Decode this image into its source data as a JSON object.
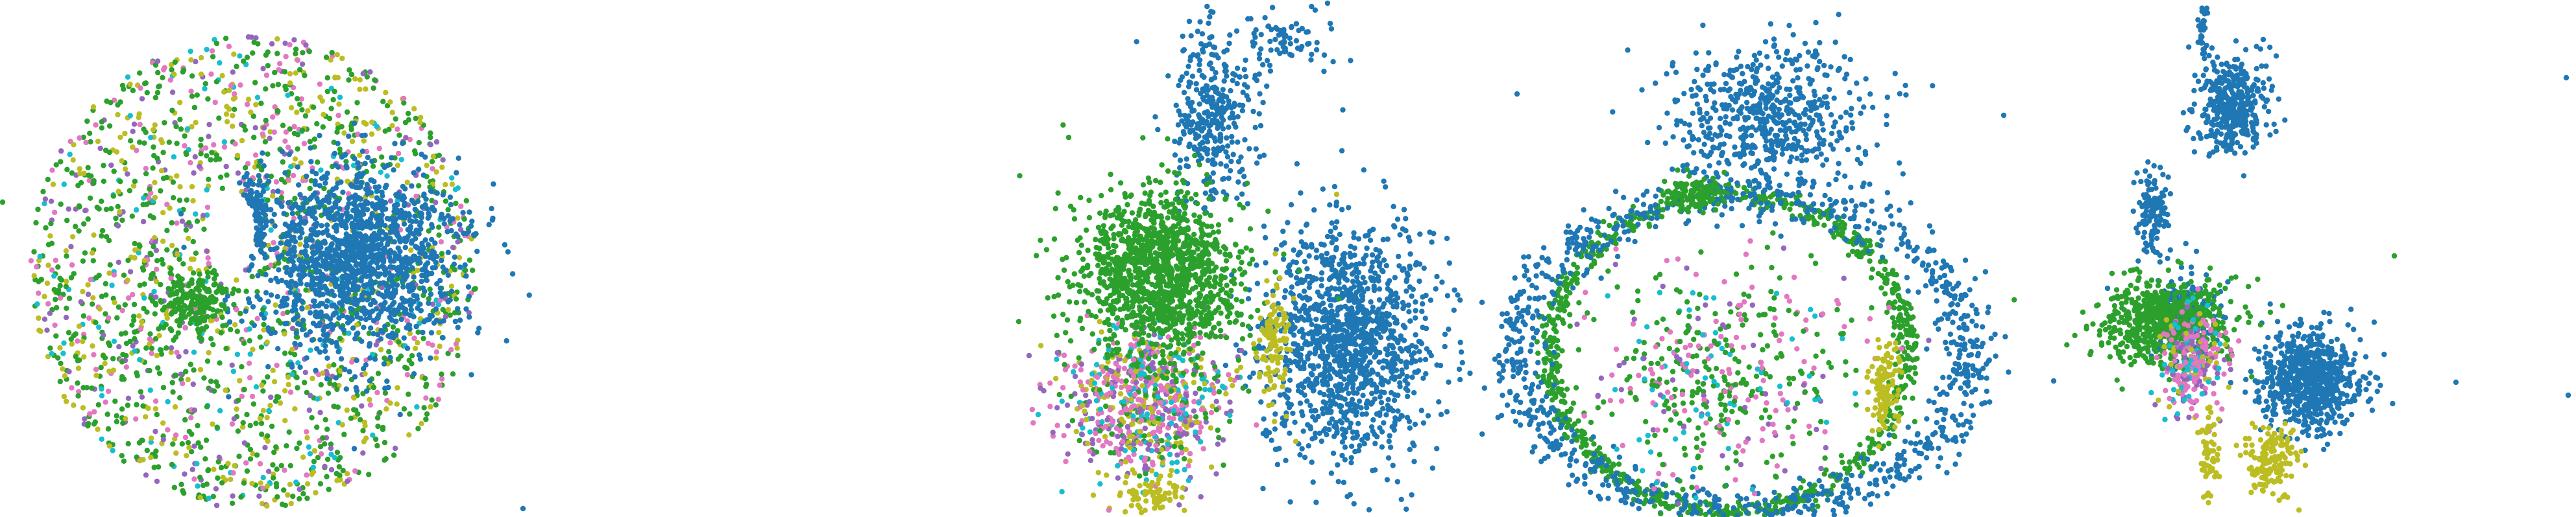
{
  "figure": {
    "background": "#ffffff",
    "point_colors": {
      "blue": "#1f77b4",
      "green": "#2ca02c",
      "olive": "#bcbd22",
      "pink": "#e377c2",
      "purple": "#9467bd",
      "cyan": "#17becf"
    }
  },
  "chart_data": [
    {
      "type": "scatter",
      "title": "",
      "xlabel": "",
      "ylabel": "",
      "axes_visible": false,
      "grid": false,
      "legend": "none",
      "xlim": [
        0,
        780
      ],
      "ylim": [
        0,
        798
      ],
      "clusters": [
        {
          "kind": "disk",
          "cx": 390,
          "cy": 420,
          "rx": 345,
          "ry": 365,
          "n": 2000,
          "mix": {
            "green": 0.5,
            "olive": 0.2,
            "pink": 0.13,
            "purple": 0.1,
            "cyan": 0.07
          }
        },
        {
          "kind": "blob",
          "cx": 550,
          "cy": 400,
          "rx": 170,
          "ry": 160,
          "n": 1400,
          "mix": {
            "blue": 1
          }
        },
        {
          "kind": "blob",
          "cx": 385,
          "cy": 335,
          "rx": 35,
          "ry": 65,
          "n": 180,
          "mix": {
            "blue": 1
          }
        },
        {
          "kind": "hole",
          "cx": 355,
          "cy": 360,
          "rx": 38,
          "ry": 70
        },
        {
          "kind": "blob",
          "cx": 300,
          "cy": 470,
          "rx": 60,
          "ry": 50,
          "n": 200,
          "mix": {
            "green": 1
          }
        },
        {
          "kind": "point",
          "x": 806,
          "y": 785,
          "color": "blue"
        },
        {
          "kind": "point",
          "x": 4,
          "y": 312,
          "color": "green"
        }
      ]
    },
    {
      "type": "scatter",
      "title": "",
      "xlabel": "",
      "ylabel": "",
      "axes_visible": false,
      "grid": false,
      "legend": "none",
      "xlim": [
        1590,
        2320
      ],
      "ylim": [
        0,
        798
      ],
      "clusters": [
        {
          "kind": "blob",
          "cx": 2080,
          "cy": 530,
          "rx": 140,
          "ry": 200,
          "n": 1300,
          "mix": {
            "blue": 1
          }
        },
        {
          "kind": "blob",
          "cx": 1870,
          "cy": 180,
          "rx": 75,
          "ry": 160,
          "n": 350,
          "mix": {
            "blue": 1
          }
        },
        {
          "kind": "blob",
          "cx": 1990,
          "cy": 60,
          "rx": 90,
          "ry": 60,
          "n": 70,
          "mix": {
            "blue": 1
          }
        },
        {
          "kind": "blob",
          "cx": 1765,
          "cy": 620,
          "rx": 135,
          "ry": 130,
          "n": 800,
          "mix": {
            "pink": 0.3,
            "purple": 0.2,
            "olive": 0.2,
            "green": 0.15,
            "cyan": 0.15
          }
        },
        {
          "kind": "blob",
          "cx": 1790,
          "cy": 420,
          "rx": 140,
          "ry": 140,
          "n": 1300,
          "mix": {
            "green": 1
          }
        },
        {
          "kind": "blob",
          "cx": 1965,
          "cy": 520,
          "rx": 25,
          "ry": 90,
          "n": 110,
          "mix": {
            "olive": 1
          }
        },
        {
          "kind": "blob",
          "cx": 1780,
          "cy": 760,
          "rx": 60,
          "ry": 30,
          "n": 70,
          "mix": {
            "olive": 1
          }
        },
        {
          "kind": "point",
          "x": 2230,
          "y": 368,
          "color": "blue"
        },
        {
          "kind": "point",
          "x": 1600,
          "y": 640,
          "color": "cyan"
        },
        {
          "kind": "point",
          "x": 2060,
          "y": 300,
          "color": "olive"
        }
      ]
    },
    {
      "type": "scatter",
      "title": "",
      "xlabel": "",
      "ylabel": "",
      "axes_visible": false,
      "grid": false,
      "legend": "none",
      "xlim": [
        2320,
        3170
      ],
      "ylim": [
        0,
        798
      ],
      "clusters": [
        {
          "kind": "ring",
          "cx": 2665,
          "cy": 545,
          "rx": 275,
          "ry": 245,
          "width": 18,
          "n": 900,
          "mix": {
            "green": 1
          }
        },
        {
          "kind": "ring",
          "cx": 2685,
          "cy": 545,
          "rx": 350,
          "ry": 245,
          "width": 40,
          "n": 1000,
          "mix": {
            "blue": 1
          }
        },
        {
          "kind": "blob",
          "cx": 2720,
          "cy": 180,
          "rx": 170,
          "ry": 130,
          "n": 600,
          "mix": {
            "blue": 1
          }
        },
        {
          "kind": "blob",
          "cx": 2660,
          "cy": 580,
          "rx": 230,
          "ry": 190,
          "n": 500,
          "mix": {
            "green": 0.55,
            "pink": 0.25,
            "cyan": 0.12,
            "purple": 0.08
          }
        },
        {
          "kind": "blob",
          "cx": 2905,
          "cy": 600,
          "rx": 25,
          "ry": 80,
          "n": 110,
          "mix": {
            "olive": 1
          }
        },
        {
          "kind": "blob",
          "cx": 2610,
          "cy": 300,
          "rx": 55,
          "ry": 30,
          "n": 110,
          "mix": {
            "green": 1
          }
        },
        {
          "kind": "point",
          "x": 2338,
          "y": 145,
          "color": "blue"
        },
        {
          "kind": "point",
          "x": 3088,
          "y": 178,
          "color": "blue"
        },
        {
          "kind": "point",
          "x": 3165,
          "y": 588,
          "color": "blue"
        },
        {
          "kind": "point",
          "x": 2372,
          "y": 460,
          "color": "blue"
        }
      ]
    },
    {
      "type": "scatter",
      "title": "",
      "xlabel": "",
      "ylabel": "",
      "axes_visible": false,
      "grid": false,
      "legend": "none",
      "xlim": [
        3170,
        3970
      ],
      "ylim": [
        0,
        798
      ],
      "clusters": [
        {
          "kind": "blob",
          "cx": 3440,
          "cy": 165,
          "rx": 60,
          "ry": 90,
          "n": 400,
          "mix": {
            "blue": 1
          }
        },
        {
          "kind": "blob",
          "cx": 3318,
          "cy": 330,
          "rx": 25,
          "ry": 70,
          "n": 120,
          "mix": {
            "blue": 1
          }
        },
        {
          "kind": "blob",
          "cx": 3395,
          "cy": 50,
          "rx": 8,
          "ry": 45,
          "n": 30,
          "mix": {
            "blue": 1
          }
        },
        {
          "kind": "blob",
          "cx": 3560,
          "cy": 585,
          "rx": 85,
          "ry": 85,
          "n": 700,
          "mix": {
            "blue": 1
          }
        },
        {
          "kind": "blob",
          "cx": 3365,
          "cy": 490,
          "rx": 55,
          "ry": 70,
          "n": 250,
          "mix": {
            "blue": 1
          }
        },
        {
          "kind": "blob",
          "cx": 3340,
          "cy": 500,
          "rx": 110,
          "ry": 80,
          "n": 650,
          "mix": {
            "green": 1
          }
        },
        {
          "kind": "blob",
          "cx": 3375,
          "cy": 560,
          "rx": 55,
          "ry": 90,
          "n": 260,
          "mix": {
            "pink": 0.4,
            "olive": 0.2,
            "purple": 0.2,
            "cyan": 0.2
          }
        },
        {
          "kind": "blob",
          "cx": 3500,
          "cy": 715,
          "rx": 45,
          "ry": 60,
          "n": 150,
          "mix": {
            "olive": 1
          }
        },
        {
          "kind": "blob",
          "cx": 3405,
          "cy": 690,
          "rx": 15,
          "ry": 75,
          "n": 60,
          "mix": {
            "olive": 1
          }
        },
        {
          "kind": "point",
          "x": 3690,
          "y": 395,
          "color": "green"
        },
        {
          "kind": "point",
          "x": 3785,
          "y": 590,
          "color": "blue"
        },
        {
          "kind": "point",
          "x": 3955,
          "y": 120,
          "color": "blue"
        },
        {
          "kind": "point",
          "x": 3958,
          "y": 610,
          "color": "blue"
        },
        {
          "kind": "point",
          "x": 3248,
          "y": 445,
          "color": "blue"
        }
      ]
    }
  ]
}
